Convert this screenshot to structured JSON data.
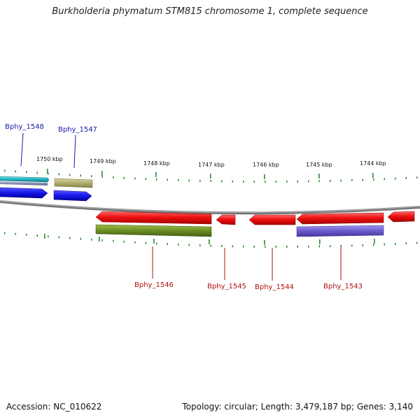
{
  "title": "Burkholderia phymatum STM815 chromosome 1, complete sequence",
  "footer": {
    "accession": "Accession: NC_010622",
    "topology": "Topology: circular; Length: 3,479,187 bp; Genes: 3,140"
  },
  "colors": {
    "backbone": "#808080",
    "tick": "#2e8b2e",
    "forward_label": "#1a1aa8",
    "reverse_label": "#b01010",
    "gene_red": "#ee1111",
    "gene_blue": "#1a1aee",
    "gene_olive": "#6b8e23",
    "gene_khaki": "#b0ae6e",
    "gene_purple": "#6a5acd",
    "gene_cyan": "#20b2c0"
  },
  "scale": {
    "kbp_labels": [
      "1750 kbp",
      "1749 kbp",
      "1748 kbp",
      "1747 kbp",
      "1746 kbp",
      "1745 kbp",
      "1744 kbp"
    ]
  },
  "gene_labels": {
    "top": [
      "Bphy_1548",
      "Bphy_1547"
    ],
    "bottom": [
      "Bphy_1546",
      "Bphy_1545",
      "Bphy_1544",
      "Bphy_1543"
    ]
  }
}
